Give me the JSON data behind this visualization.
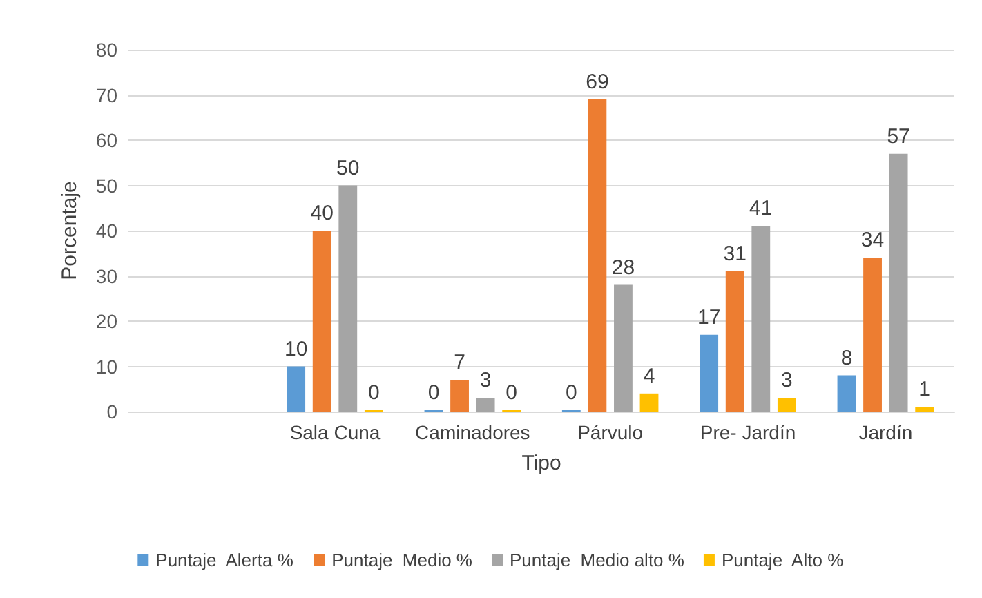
{
  "chart_data": {
    "type": "bar",
    "xlabel": "Tipo",
    "ylabel": "Porcentaje",
    "categories": [
      null,
      "Sala Cuna",
      "Caminadores",
      "Párvulo",
      "Pre- Jardín",
      "Jardín"
    ],
    "series": [
      {
        "name": "Puntaje  Alerta %",
        "color": "#5b9bd5",
        "values": [
          null,
          10,
          0,
          0,
          17,
          8
        ]
      },
      {
        "name": "Puntaje  Medio %",
        "color": "#ed7d31",
        "values": [
          null,
          40,
          7,
          69,
          31,
          34
        ]
      },
      {
        "name": "Puntaje  Medio alto %",
        "color": "#a5a5a5",
        "values": [
          null,
          50,
          3,
          28,
          41,
          57
        ]
      },
      {
        "name": "Puntaje  Alto %",
        "color": "#ffc000",
        "values": [
          null,
          0,
          0,
          4,
          3,
          1
        ]
      }
    ],
    "ylim": [
      0,
      80
    ],
    "yticks": [
      0,
      10,
      20,
      30,
      40,
      50,
      60,
      70,
      80
    ],
    "grid": "y",
    "legend": "bottom",
    "data_labels": true
  }
}
